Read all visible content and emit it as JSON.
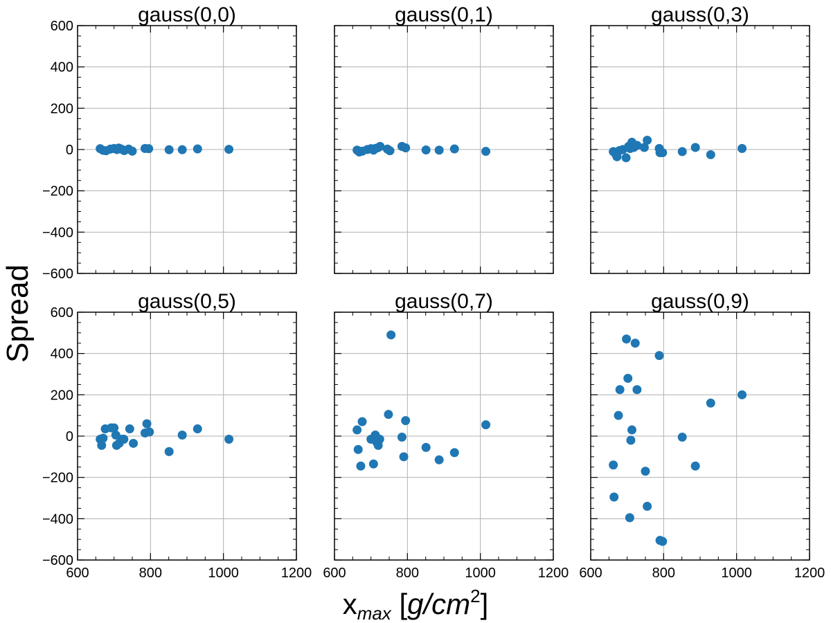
{
  "figure": {
    "ylabel": "Spread",
    "xlabel": {
      "base": "x",
      "sub": "max",
      "unit_open": " [",
      "unit_main": "g/cm",
      "unit_sup": "2",
      "unit_close": "]"
    }
  },
  "colors": {
    "marker": "#1f77b4",
    "grid": "#b0b0b0",
    "axes": "#000000"
  },
  "chart_data": [
    {
      "type": "scatter",
      "title": "gauss(0,0)",
      "xlim": [
        600,
        1200
      ],
      "ylim": [
        -600,
        600
      ],
      "xticks": [
        600,
        800,
        1000,
        1200
      ],
      "yticks": [
        -600,
        -400,
        -200,
        0,
        200,
        400,
        600
      ],
      "grid": true,
      "x": [
        662,
        670,
        678,
        690,
        700,
        708,
        713,
        720,
        728,
        740,
        750,
        785,
        795,
        851,
        887,
        929,
        1015
      ],
      "y": [
        4,
        -4,
        -6,
        2,
        5,
        0,
        7,
        2,
        -5,
        2,
        -8,
        5,
        4,
        -1,
        -1,
        3,
        1
      ]
    },
    {
      "type": "scatter",
      "title": "gauss(0,1)",
      "xlim": [
        600,
        1200
      ],
      "ylim": [
        -600,
        600
      ],
      "xticks": [
        600,
        800,
        1000,
        1200
      ],
      "yticks": [
        -600,
        -400,
        -200,
        0,
        200,
        400,
        600
      ],
      "grid": true,
      "x": [
        662,
        668,
        676,
        690,
        700,
        707,
        712,
        718,
        725,
        745,
        752,
        785,
        795,
        851,
        887,
        929,
        1015
      ],
      "y": [
        -3,
        -12,
        -8,
        0,
        4,
        -3,
        5,
        8,
        15,
        2,
        -6,
        15,
        8,
        -2,
        -3,
        3,
        -9
      ]
    },
    {
      "type": "scatter",
      "title": "gauss(0,3)",
      "xlim": [
        600,
        1200
      ],
      "ylim": [
        -600,
        600
      ],
      "xticks": [
        600,
        800,
        1000,
        1200
      ],
      "yticks": [
        -600,
        -400,
        -200,
        0,
        200,
        400,
        600
      ],
      "grid": true,
      "x": [
        662,
        668,
        672,
        679,
        688,
        697,
        704,
        708,
        713,
        718,
        727,
        747,
        755,
        788,
        790,
        797,
        851,
        887,
        929,
        1015
      ],
      "y": [
        -10,
        -20,
        -35,
        -5,
        0,
        -40,
        15,
        5,
        35,
        10,
        20,
        10,
        45,
        5,
        -15,
        -15,
        -10,
        10,
        -25,
        5
      ]
    },
    {
      "type": "scatter",
      "title": "gauss(0,5)",
      "xlim": [
        600,
        1200
      ],
      "ylim": [
        -600,
        600
      ],
      "xticks": [
        600,
        800,
        1000,
        1200
      ],
      "yticks": [
        -600,
        -400,
        -200,
        0,
        200,
        400,
        600
      ],
      "grid": true,
      "x": [
        662,
        666,
        670,
        676,
        692,
        700,
        705,
        707,
        714,
        722,
        727,
        743,
        753,
        785,
        790,
        797,
        851,
        887,
        929,
        1015
      ],
      "y": [
        -15,
        -45,
        -10,
        35,
        40,
        40,
        5,
        -45,
        -35,
        -15,
        -15,
        35,
        -35,
        15,
        60,
        20,
        -75,
        5,
        35,
        -15
      ]
    },
    {
      "type": "scatter",
      "title": "gauss(0,7)",
      "xlim": [
        600,
        1200
      ],
      "ylim": [
        -600,
        600
      ],
      "xticks": [
        600,
        800,
        1000,
        1200
      ],
      "yticks": [
        -600,
        -400,
        -200,
        0,
        200,
        400,
        600
      ],
      "grid": true,
      "x": [
        662,
        665,
        672,
        676,
        700,
        707,
        712,
        716,
        720,
        724,
        748,
        755,
        785,
        790,
        795,
        851,
        887,
        929,
        1015
      ],
      "y": [
        30,
        -65,
        -145,
        70,
        -15,
        -135,
        5,
        -30,
        -45,
        -15,
        105,
        490,
        -5,
        -100,
        75,
        -55,
        -115,
        -80,
        55
      ]
    },
    {
      "type": "scatter",
      "title": "gauss(0,9)",
      "xlim": [
        600,
        1200
      ],
      "ylim": [
        -600,
        600
      ],
      "xticks": [
        600,
        800,
        1000,
        1200
      ],
      "yticks": [
        -600,
        -400,
        -200,
        0,
        200,
        400,
        600
      ],
      "grid": true,
      "x": [
        662,
        664,
        676,
        680,
        698,
        702,
        707,
        710,
        713,
        722,
        727,
        750,
        755,
        788,
        790,
        797,
        851,
        887,
        929,
        1015
      ],
      "y": [
        -140,
        -295,
        100,
        225,
        470,
        280,
        -395,
        -20,
        30,
        450,
        225,
        -170,
        -340,
        390,
        -505,
        -510,
        -5,
        -145,
        160,
        200
      ]
    }
  ]
}
